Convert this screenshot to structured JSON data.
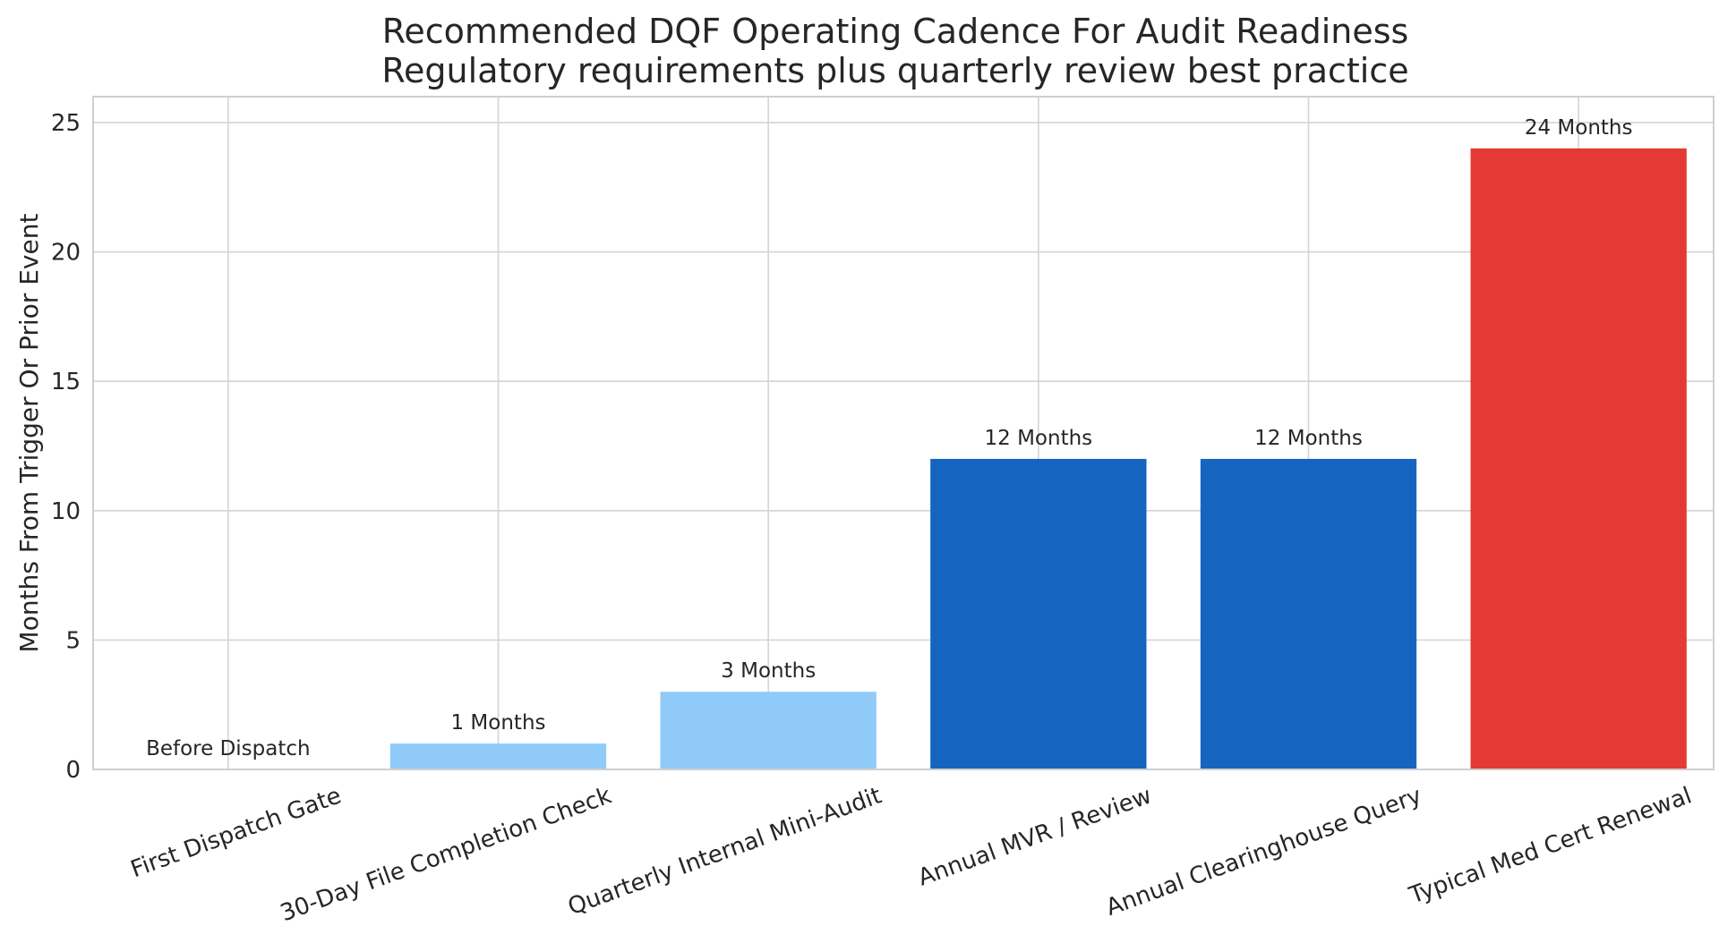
{
  "chart_data": {
    "type": "bar",
    "title": "Recommended DQF Operating Cadence For Audit Readiness",
    "subtitle": "Regulatory requirements plus quarterly review best practice",
    "xlabel": "",
    "ylabel": "Months From Trigger Or Prior Event",
    "categories": [
      "First Dispatch Gate",
      "30-Day File Completion Check",
      "Quarterly Internal Mini-Audit",
      "Annual MVR / Review",
      "Annual Clearinghouse Query",
      "Typical Med Cert Renewal"
    ],
    "values": [
      0,
      1,
      3,
      12,
      12,
      24
    ],
    "data_labels": [
      "Before Dispatch",
      "1 Months",
      "3 Months",
      "12 Months",
      "12 Months",
      "24 Months"
    ],
    "bar_colors": [
      "#90CAF9",
      "#90CAF9",
      "#90CAF9",
      "#1565C0",
      "#1565C0",
      "#E53935"
    ],
    "ylim": [
      0,
      26
    ],
    "yticks": [
      0,
      5,
      10,
      15,
      20,
      25
    ],
    "grid": true,
    "legend": "none"
  }
}
